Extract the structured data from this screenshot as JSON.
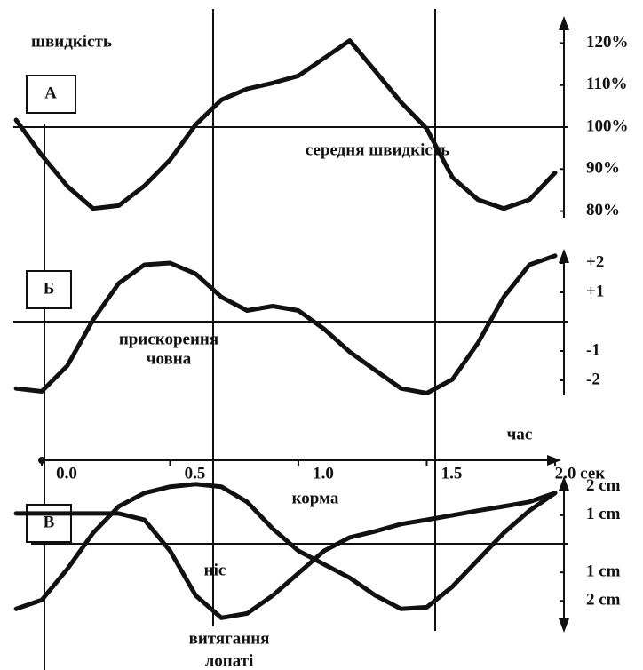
{
  "chart_data": [
    {
      "type": "line",
      "label": "А",
      "ylabel": "швидкість",
      "annotations": [
        "середня швидкість"
      ],
      "x": [
        -0.1,
        0,
        0.1,
        0.2,
        0.3,
        0.4,
        0.5,
        0.6,
        0.7,
        0.8,
        0.9,
        1.0,
        1.1,
        1.2,
        1.3,
        1.4,
        1.5,
        1.6,
        1.7,
        1.8,
        1.9,
        2.0
      ],
      "values": [
        101.7,
        93.3,
        85.9,
        80.6,
        81.3,
        86.0,
        92.2,
        100.6,
        106.5,
        109.1,
        110.5,
        112.2,
        116.4,
        120.6,
        113.3,
        105.9,
        99.6,
        88.0,
        82.7,
        80.6,
        82.7,
        89.1
      ],
      "color": "#111111",
      "xlim": [
        -0.11,
        2.06
      ],
      "ylim": [
        78,
        122
      ],
      "baseline": 100,
      "yticks": [
        {
          "value": 120,
          "label": "120%"
        },
        {
          "value": 110,
          "label": "110%"
        },
        {
          "value": 100,
          "label": "100%"
        },
        {
          "value": 90,
          "label": "90%"
        },
        {
          "value": 80,
          "label": "80%"
        }
      ]
    },
    {
      "type": "line",
      "label": "Б",
      "annotations": [
        "прискорення",
        "човна"
      ],
      "x": [
        -0.1,
        0,
        0.1,
        0.2,
        0.3,
        0.4,
        0.5,
        0.6,
        0.7,
        0.8,
        0.9,
        1.0,
        1.1,
        1.2,
        1.3,
        1.4,
        1.5,
        1.6,
        1.7,
        1.8,
        1.9,
        2.0
      ],
      "values": [
        -2.28,
        -2.38,
        -1.5,
        0.06,
        1.31,
        1.94,
        2.0,
        1.63,
        0.84,
        0.38,
        0.53,
        0.38,
        -0.25,
        -1.03,
        -1.66,
        -2.28,
        -2.44,
        -1.97,
        -0.72,
        0.84,
        1.94,
        2.25
      ],
      "color": "#111111",
      "xlim": [
        -0.11,
        2.06
      ],
      "ylim": [
        -2.5,
        2.5
      ],
      "baseline": 0,
      "yticks": [
        {
          "value": 2,
          "label": "+2"
        },
        {
          "value": 1,
          "label": "+1"
        },
        -1,
        -2
      ]
    },
    {
      "type": "line",
      "label": "В",
      "xlabel": "час",
      "annotations": [
        "витягання",
        "лопаті"
      ],
      "x": [
        -0.1,
        0,
        0.1,
        0.2,
        0.3,
        0.4,
        0.5,
        0.6,
        0.7,
        0.8,
        0.9,
        1.0,
        1.1,
        1.2,
        1.3,
        1.4,
        1.5,
        1.6,
        1.7,
        1.8,
        1.9,
        2.0
      ],
      "series": [
        {
          "name": "корма",
          "color": "#111111",
          "values": [
            -2.28,
            -1.97,
            -0.88,
            0.38,
            1.31,
            1.78,
            2.0,
            2.09,
            2.0,
            1.47,
            0.53,
            -0.25,
            -0.72,
            -1.19,
            -1.81,
            -2.28,
            -2.22,
            -1.5,
            -0.56,
            0.38,
            1.16,
            1.78
          ]
        },
        {
          "name": "ніс",
          "color": "#111111",
          "values": [
            1.06,
            1.06,
            1.06,
            1.06,
            1.06,
            0.84,
            -0.25,
            -1.81,
            -2.59,
            -2.44,
            -1.81,
            -1.03,
            -0.25,
            0.22,
            0.44,
            0.69,
            0.84,
            1.0,
            1.16,
            1.31,
            1.47,
            1.78
          ]
        }
      ],
      "xlim": [
        -0.11,
        2.06
      ],
      "ylim": [
        -2.8,
        2.8
      ],
      "baseline": 0,
      "xticks": [
        {
          "value": 0,
          "label": "0.0"
        },
        0.5,
        {
          "value": 1,
          "label": "1.0"
        },
        1.5,
        {
          "value": 2,
          "label": "2.0 сек"
        }
      ],
      "yticks": [
        {
          "value": 2,
          "label": "2 cm"
        },
        {
          "value": 1,
          "label": "1 cm"
        },
        {
          "value": -1,
          "label": "1 cm"
        },
        {
          "value": -2,
          "label": "2 cm"
        }
      ]
    }
  ]
}
